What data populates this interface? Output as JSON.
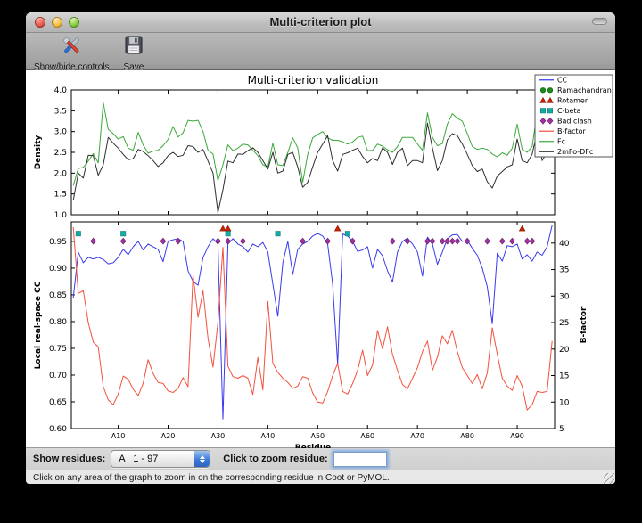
{
  "window": {
    "title": "Multi-criterion plot",
    "toolbar": {
      "controls_label": "Show/hide controls",
      "save_label": "Save"
    }
  },
  "controls": {
    "show_residues_label": "Show residues:",
    "residue_range_value": "A   1 - 97",
    "zoom_residue_label": "Click to zoom residue:",
    "zoom_residue_input_value": ""
  },
  "status_bar": {
    "text": "Click on any area of the graph to zoom in on the corresponding residue in Coot or PyMOL."
  },
  "chart_data": {
    "type": "line",
    "title": "Multi-criterion validation",
    "xlabel": "Residue",
    "x_start": 1,
    "x_end": 97,
    "xlim": [
      0.6,
      97.5
    ],
    "x_ticks": [
      {
        "pos": 10,
        "label": "A10"
      },
      {
        "pos": 20,
        "label": "A20"
      },
      {
        "pos": 30,
        "label": "A30"
      },
      {
        "pos": 40,
        "label": "A40"
      },
      {
        "pos": 50,
        "label": "A50"
      },
      {
        "pos": 60,
        "label": "A60"
      },
      {
        "pos": 70,
        "label": "A70"
      },
      {
        "pos": 80,
        "label": "A80"
      },
      {
        "pos": 90,
        "label": "A90"
      }
    ],
    "top_plot": {
      "ylabel": "Density",
      "ylim": [
        1.0,
        4.0
      ],
      "yticks": [
        1.0,
        1.5,
        2.0,
        2.5,
        3.0,
        3.5,
        4.0
      ],
      "series": [
        {
          "name": "Fc",
          "color": "#3aa83a",
          "values": [
            1.7,
            2.11,
            2.14,
            2.29,
            2.47,
            2.25,
            3.7,
            3.05,
            2.95,
            2.82,
            2.88,
            2.6,
            2.55,
            2.98,
            2.68,
            2.48,
            2.53,
            2.55,
            2.66,
            2.81,
            3.12,
            2.87,
            2.97,
            3.27,
            3.25,
            3.27,
            3.0,
            2.55,
            2.46,
            1.82,
            2.2,
            2.68,
            2.54,
            2.6,
            2.7,
            2.68,
            2.55,
            2.42,
            2.2,
            2.15,
            2.72,
            2.2,
            2.18,
            2.5,
            2.85,
            2.61,
            1.78,
            2.45,
            2.85,
            2.93,
            3.0,
            2.85,
            2.79,
            2.79,
            2.75,
            2.7,
            2.75,
            2.86,
            2.89,
            2.54,
            2.55,
            2.7,
            2.65,
            2.56,
            2.5,
            2.64,
            2.86,
            2.86,
            2.86,
            2.7,
            2.55,
            3.45,
            2.86,
            2.66,
            2.71,
            3.18,
            3.43,
            3.32,
            3.25,
            2.95,
            2.64,
            2.57,
            2.6,
            2.57,
            2.46,
            2.39,
            2.49,
            2.43,
            2.6,
            3.18,
            2.57,
            2.5,
            2.64,
            3.46,
            2.6,
            2.75,
            3.0
          ]
        },
        {
          "name": "2mFo-DFc",
          "color": "#2e2e2e",
          "values": [
            1.35,
            2.0,
            1.88,
            2.43,
            2.42,
            1.95,
            2.2,
            2.86,
            2.72,
            2.6,
            2.45,
            2.32,
            2.35,
            2.57,
            2.52,
            2.42,
            2.3,
            2.16,
            2.25,
            2.42,
            2.5,
            2.4,
            2.43,
            2.66,
            2.64,
            2.5,
            2.57,
            2.29,
            2.0,
            1.05,
            1.6,
            2.29,
            2.25,
            2.46,
            2.45,
            2.54,
            2.61,
            2.5,
            2.3,
            2.1,
            2.5,
            2.0,
            2.05,
            2.45,
            2.5,
            2.15,
            1.66,
            1.78,
            2.15,
            2.5,
            2.7,
            2.9,
            2.3,
            2.05,
            2.45,
            2.49,
            2.55,
            2.6,
            2.4,
            2.25,
            2.35,
            2.3,
            2.61,
            2.5,
            2.21,
            2.5,
            2.6,
            2.18,
            2.3,
            2.3,
            2.25,
            3.2,
            2.6,
            2.06,
            2.3,
            2.8,
            2.95,
            2.9,
            2.7,
            2.45,
            2.18,
            2.04,
            2.1,
            1.79,
            1.64,
            1.93,
            2.04,
            2.15,
            2.2,
            2.82,
            2.3,
            2.25,
            2.45,
            3.0,
            2.3,
            2.5,
            2.85
          ]
        }
      ]
    },
    "bottom_plot": {
      "ylabel_left": "Local real-space CC",
      "ylim_left": [
        0.6,
        0.9865
      ],
      "yticks_left": [
        0.6,
        0.65,
        0.7,
        0.75,
        0.8,
        0.85,
        0.9,
        0.95
      ],
      "ylabel_right": "B-factor",
      "ylim_right": [
        5,
        44
      ],
      "yticks_right": [
        5,
        10,
        15,
        20,
        25,
        30,
        35,
        40
      ],
      "series": [
        {
          "name": "CC",
          "axis": "left",
          "color": "#3a3aee",
          "values": [
            0.845,
            0.93,
            0.91,
            0.92,
            0.917,
            0.92,
            0.916,
            0.908,
            0.91,
            0.92,
            0.935,
            0.925,
            0.94,
            0.95,
            0.934,
            0.945,
            0.94,
            0.935,
            0.912,
            0.95,
            0.953,
            0.955,
            0.95,
            0.895,
            0.875,
            0.868,
            0.92,
            0.94,
            0.955,
            0.945,
            0.618,
            0.945,
            0.955,
            0.945,
            0.94,
            0.93,
            0.945,
            0.94,
            0.948,
            0.93,
            0.87,
            0.81,
            0.91,
            0.95,
            0.888,
            0.935,
            0.945,
            0.95,
            0.96,
            0.965,
            0.96,
            0.945,
            0.87,
            0.72,
            0.964,
            0.96,
            0.95,
            0.931,
            0.934,
            0.94,
            0.9,
            0.935,
            0.923,
            0.895,
            0.874,
            0.93,
            0.95,
            0.956,
            0.945,
            0.93,
            0.885,
            0.958,
            0.945,
            0.907,
            0.93,
            0.955,
            0.962,
            0.963,
            0.95,
            0.952,
            0.937,
            0.924,
            0.9,
            0.865,
            0.796,
            0.928,
            0.913,
            0.942,
            0.94,
            0.945,
            0.917,
            0.925,
            0.913,
            0.93,
            0.924,
            0.94,
            0.98
          ]
        },
        {
          "name": "B-factor",
          "axis": "right",
          "color": "#f4503c",
          "values": [
            43,
            30.5,
            31,
            25,
            21.3,
            20.4,
            12.9,
            10.4,
            9.5,
            11.5,
            14.9,
            14.3,
            12.4,
            11.2,
            13.5,
            18,
            15.4,
            13.7,
            13.5,
            12.1,
            11.8,
            12.6,
            14.6,
            12.9,
            34,
            26,
            31,
            22,
            16.6,
            25,
            39.2,
            16.8,
            14.8,
            14.5,
            15,
            14.5,
            11.4,
            18.4,
            12.3,
            29,
            17.3,
            15.6,
            14.5,
            13.7,
            12.6,
            13,
            14.8,
            14.5,
            11.7,
            10,
            9.8,
            12,
            15,
            17.3,
            12,
            11.5,
            13.5,
            16,
            19.8,
            15,
            17,
            23.5,
            20,
            24.2,
            19,
            16,
            13.3,
            12.5,
            14.5,
            16.5,
            19.5,
            21.5,
            16,
            18.5,
            22.5,
            21,
            23.5,
            19.5,
            16.5,
            15,
            13.5,
            15.2,
            12.5,
            15.5,
            24,
            19,
            14.5,
            13,
            12.2,
            15,
            13,
            8.5,
            9.5,
            12,
            11.8,
            12,
            21.5
          ]
        }
      ],
      "markers": [
        {
          "name": "Rotamer",
          "shape": "triangle",
          "color": "#cc2200",
          "edge": "#8a1500",
          "y_cc": 0.974,
          "residues": [
            31,
            32,
            54,
            91
          ]
        },
        {
          "name": "C-beta",
          "shape": "square",
          "color": "#17aaa3",
          "edge": "#0e7f7a",
          "y_cc": 0.9645,
          "residues": [
            2,
            11,
            32,
            42,
            56
          ]
        },
        {
          "name": "Bad clash",
          "shape": "diamond",
          "color": "#a033a0",
          "edge": "#6a1a6a",
          "y_cc": 0.9505,
          "residues": [
            5,
            11,
            19,
            22,
            30,
            32,
            35,
            47,
            52,
            57,
            65,
            68,
            72,
            73,
            75,
            76,
            77,
            78,
            80,
            84,
            87,
            89,
            92,
            93
          ]
        }
      ]
    },
    "legend": {
      "position": "upper right",
      "entries": [
        {
          "label": "CC",
          "type": "line",
          "color": "#3a3aee"
        },
        {
          "label": "Ramachandran",
          "type": "circle",
          "color": "#1a8c1a",
          "edge": "#0f6410"
        },
        {
          "label": "Rotamer",
          "type": "triangle",
          "color": "#cc2200",
          "edge": "#8a1500"
        },
        {
          "label": "C-beta",
          "type": "square",
          "color": "#17aaa3",
          "edge": "#0e7f7a"
        },
        {
          "label": "Bad clash",
          "type": "diamond",
          "color": "#a033a0",
          "edge": "#6a1a6a"
        },
        {
          "label": "B-factor",
          "type": "line",
          "color": "#f4503c"
        },
        {
          "label": "Fc",
          "type": "line",
          "color": "#3aa83a"
        },
        {
          "label": "2mFo-DFc",
          "type": "line",
          "color": "#2e2e2e"
        }
      ]
    },
    "grid": false
  }
}
